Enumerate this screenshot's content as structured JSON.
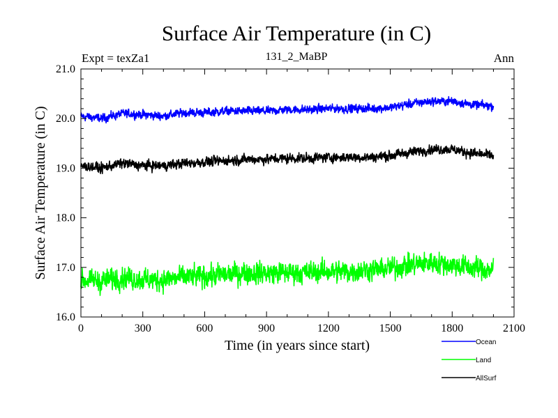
{
  "chart_data": {
    "type": "line",
    "title": "Surface Air Temperature (in C)",
    "subtitle_left": "Expt = texZa1",
    "subtitle_center": "131_2_MaBP",
    "subtitle_right": "Ann",
    "xlabel": "Time (in years since start)",
    "ylabel": "Surface Air Temperature (in C)",
    "xlim": [
      0,
      2100
    ],
    "ylim": [
      16.0,
      21.0
    ],
    "xticks": [
      "0",
      "300",
      "600",
      "900",
      "1200",
      "1500",
      "1800",
      "2100"
    ],
    "yticks": [
      "16.0",
      "17.0",
      "18.0",
      "19.0",
      "20.0",
      "21.0"
    ],
    "x_step_years": 100,
    "x": [
      0,
      100,
      200,
      300,
      400,
      500,
      600,
      700,
      800,
      900,
      1000,
      1100,
      1200,
      1300,
      1400,
      1500,
      1600,
      1700,
      1800,
      1900,
      2000
    ],
    "series": [
      {
        "name": "Ocean",
        "color": "#0000ff",
        "noise": 0.07,
        "values": [
          20.05,
          20.0,
          20.1,
          20.08,
          20.05,
          20.12,
          20.12,
          20.15,
          20.15,
          20.15,
          20.18,
          20.18,
          20.2,
          20.2,
          20.2,
          20.22,
          20.3,
          20.35,
          20.35,
          20.28,
          20.25
        ]
      },
      {
        "name": "Land",
        "color": "#00ff00",
        "noise": 0.18,
        "values": [
          16.75,
          16.72,
          16.8,
          16.75,
          16.75,
          16.8,
          16.82,
          16.85,
          16.9,
          16.88,
          16.9,
          16.9,
          16.92,
          16.92,
          16.95,
          16.98,
          17.05,
          17.1,
          17.05,
          17.0,
          16.95
        ]
      },
      {
        "name": "AllSurf",
        "color": "#000000",
        "noise": 0.08,
        "values": [
          19.05,
          19.0,
          19.1,
          19.05,
          19.05,
          19.1,
          19.12,
          19.15,
          19.18,
          19.18,
          19.2,
          19.2,
          19.22,
          19.22,
          19.22,
          19.25,
          19.32,
          19.38,
          19.38,
          19.3,
          19.25
        ]
      }
    ],
    "legend_position": "bottom-right",
    "grid": false
  }
}
